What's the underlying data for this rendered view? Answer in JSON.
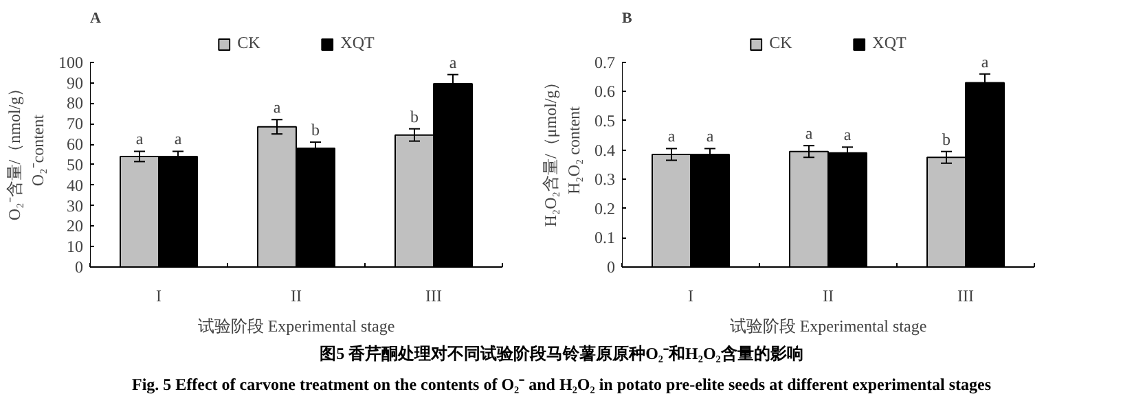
{
  "chart_data": [
    {
      "type": "bar",
      "title": "A",
      "xlabel": "试验阶段 Experimental stage",
      "ylabel": "O₂⁻含量/（nmol/g）\nO₂⁻content",
      "categories": [
        "I",
        "II",
        "III"
      ],
      "series": [
        {
          "name": "CK",
          "color": "#c0c0c0",
          "values": [
            54,
            68.5,
            64.5
          ],
          "errors": [
            2.5,
            3.5,
            3
          ]
        },
        {
          "name": "XQT",
          "color": "#000000",
          "values": [
            54,
            58,
            89.5
          ],
          "errors": [
            2.5,
            3,
            4.5
          ]
        }
      ],
      "ylim": [
        0,
        100
      ],
      "yticks": [
        0,
        10,
        20,
        30,
        40,
        50,
        60,
        70,
        80,
        90,
        100
      ],
      "grid": false,
      "legend": "top",
      "annotations": [
        {
          "text": "a",
          "x": "I",
          "y": 54
        },
        {
          "text": "a",
          "x": "I",
          "y": 54
        },
        {
          "text": "a",
          "x": "II",
          "y": 68.5
        },
        {
          "text": "b",
          "x": "II",
          "y": 58
        },
        {
          "text": "b",
          "x": "III",
          "y": 64.5
        },
        {
          "text": "a",
          "x": "III",
          "y": 89.5
        },
        "图5 香芹酮处理对不同试验阶段马铃薯原原种O₂⁻和H₂O₂含量的影响",
        "Fig. 5 Effect of carvone treatment on the contents of O₂⁻ and H₂O₂ in potato pre-elite seeds at different experimental stages"
      ]
    },
    {
      "type": "bar",
      "title": "B",
      "xlabel": "试验阶段 Experimental stage",
      "ylabel": "H₂O₂含量/（μmol/g）\nH₂O₂ content",
      "categories": [
        "I",
        "II",
        "III"
      ],
      "series": [
        {
          "name": "CK",
          "color": "#c0c0c0",
          "values": [
            0.385,
            0.395,
            0.375
          ],
          "errors": [
            0.02,
            0.02,
            0.02
          ]
        },
        {
          "name": "XQT",
          "color": "#000000",
          "values": [
            0.385,
            0.39,
            0.63
          ],
          "errors": [
            0.02,
            0.02,
            0.03
          ]
        }
      ],
      "ylim": [
        0,
        0.7
      ],
      "yticks": [
        0,
        0.1,
        0.2,
        0.3,
        0.4,
        0.5,
        0.6,
        0.7
      ],
      "grid": false,
      "legend": "top",
      "annotations": [
        {
          "text": "a",
          "x": "I",
          "y": 0.385
        },
        {
          "text": "a",
          "x": "I",
          "y": 0.385
        },
        {
          "text": "a",
          "x": "II",
          "y": 0.395
        },
        {
          "text": "a",
          "x": "II",
          "y": 0.39
        },
        {
          "text": "b",
          "x": "III",
          "y": 0.375
        },
        {
          "text": "a",
          "x": "III",
          "y": 0.63
        }
      ]
    }
  ]
}
